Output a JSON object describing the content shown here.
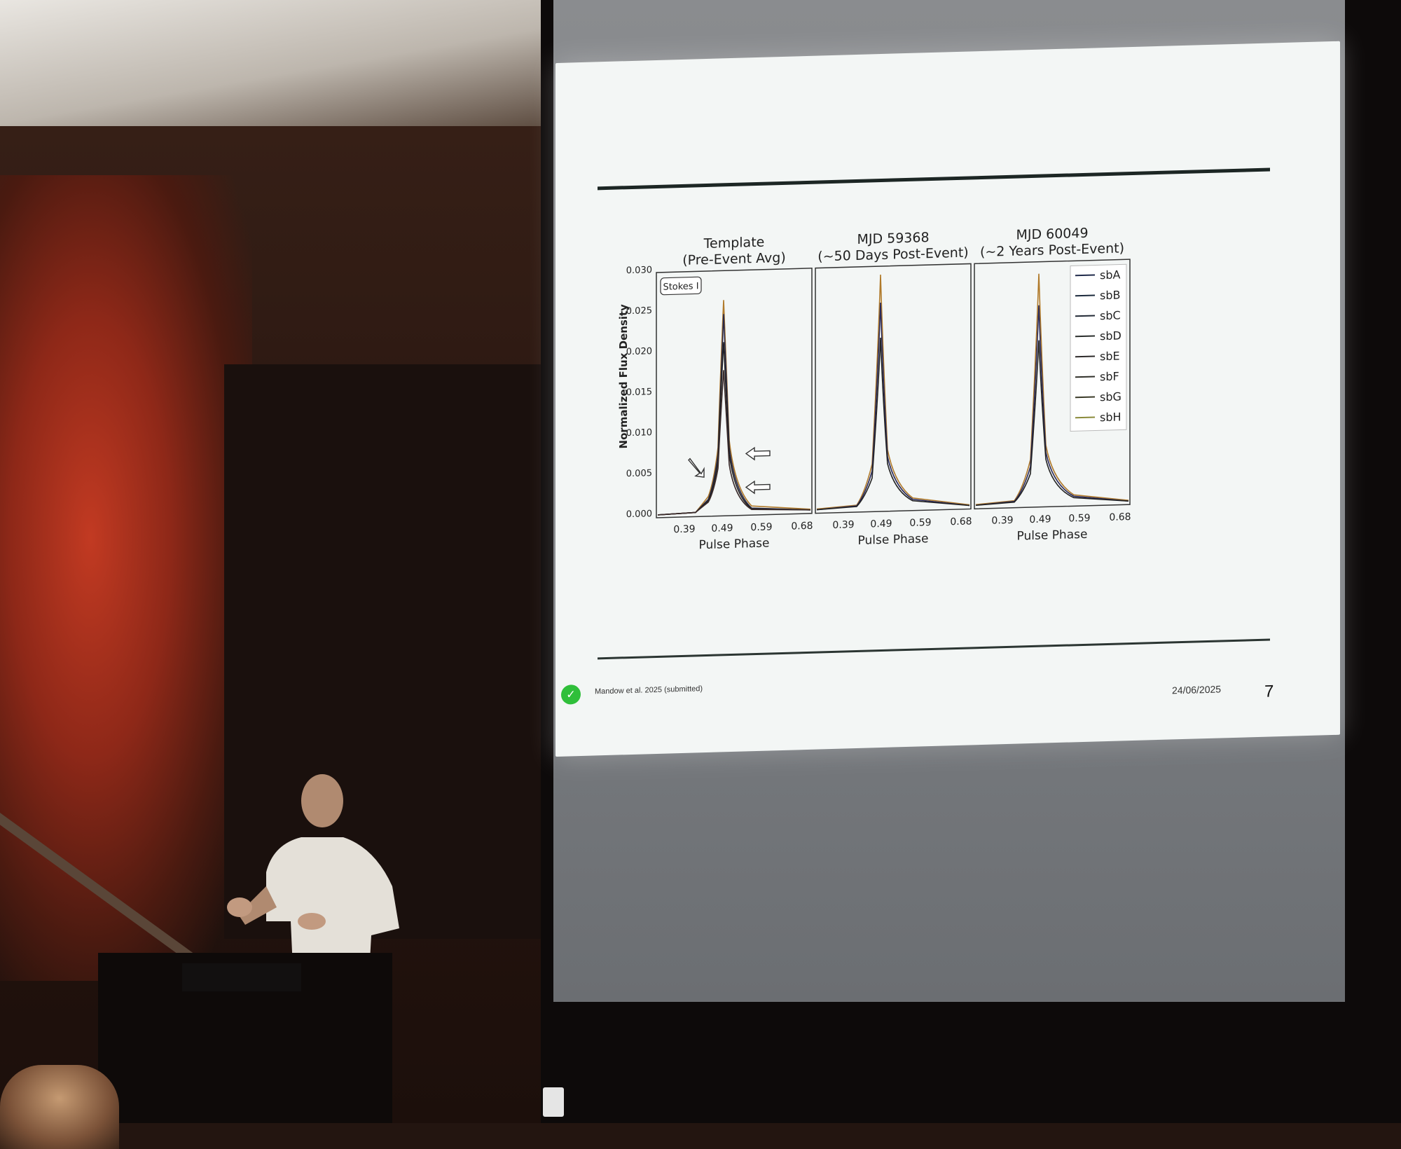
{
  "slide": {
    "citation": "Mandow et al. 2025 (submitted)",
    "date": "24/06/2025",
    "page_number": "7"
  },
  "figure": {
    "ylabel": "Normalized Flux Density",
    "xlabel": "Pulse Phase",
    "yticks": [
      "0.000",
      "0.005",
      "0.010",
      "0.015",
      "0.020",
      "0.025",
      "0.030"
    ],
    "xticks": [
      "0.39",
      "0.49",
      "0.59",
      "0.68"
    ],
    "stokes_label": "Stokes I",
    "panels": [
      {
        "title_line1": "Template",
        "title_line2": "(Pre-Event Avg)"
      },
      {
        "title_line1": "MJD 59368",
        "title_line2": "(~50 Days Post-Event)"
      },
      {
        "title_line1": "MJD 60049",
        "title_line2": "(~2 Years Post-Event)"
      }
    ],
    "legend": [
      {
        "label": "sbA",
        "color": "#1f2a4a"
      },
      {
        "label": "sbB",
        "color": "#1c2a3c"
      },
      {
        "label": "sbC",
        "color": "#232a36"
      },
      {
        "label": "sbD",
        "color": "#2a2e2c"
      },
      {
        "label": "sbE",
        "color": "#2d2a2a"
      },
      {
        "label": "sbF",
        "color": "#30302a"
      },
      {
        "label": "sbG",
        "color": "#3a3a28"
      },
      {
        "label": "sbH",
        "color": "#8a8a3a"
      }
    ]
  }
}
